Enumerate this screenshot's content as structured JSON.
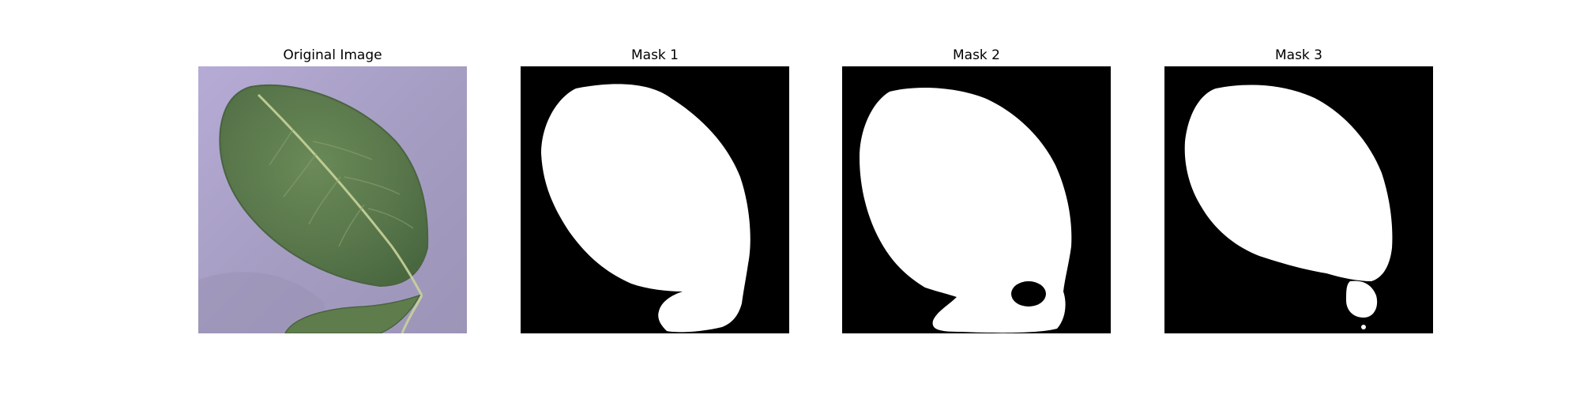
{
  "figure": {
    "panels": [
      {
        "title": "Original Image",
        "kind": "photo",
        "subject": "leaf-photo"
      },
      {
        "title": "Mask 1",
        "kind": "mask",
        "colors": {
          "background": "#000000",
          "foreground": "#ffffff"
        }
      },
      {
        "title": "Mask 2",
        "kind": "mask",
        "colors": {
          "background": "#000000",
          "foreground": "#ffffff"
        }
      },
      {
        "title": "Mask 3",
        "kind": "mask",
        "colors": {
          "background": "#000000",
          "foreground": "#ffffff"
        }
      }
    ]
  },
  "colors": {
    "photo_background": "#a69ec3",
    "leaf_fill": "#5b7a4c",
    "leaf_vein": "#c8d39a"
  }
}
